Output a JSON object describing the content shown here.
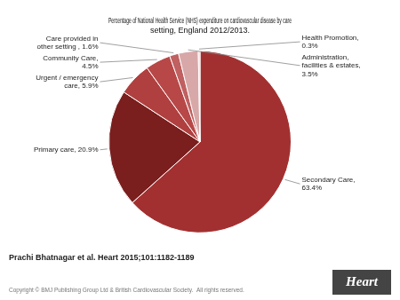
{
  "chart_data": {
    "type": "pie",
    "title": "Percentage of National Health Service (NHS) expenditure on cardiovascular disease by care\nsetting, England 2012/2013.",
    "categories": [
      "Secondary Care,\n63.4%",
      "Primary care, 20.9%",
      "Urgent / emergency\ncare, 5.9%",
      "Community Care,\n4.5%",
      "Care provided in\nother setting , 1.6%",
      "Administration,\nfacilities & estates,\n3.5%",
      "Health Promotion,\n0.3%"
    ],
    "values": [
      63.4,
      20.9,
      5.9,
      4.5,
      1.6,
      3.5,
      0.3
    ],
    "colors": [
      "#a33030",
      "#7a1e1e",
      "#b04040",
      "#b84848",
      "#c06060",
      "#d8a8a8",
      "#ead0d0"
    ],
    "legend": false,
    "annotations": [
      "Prachi Bhatnagar et al. Heart 2015;101:1182-1189",
      "Copyright © BMJ Publishing Group Ltd & British Cardiovascular Society.  All rights reserved.",
      "Heart"
    ]
  }
}
